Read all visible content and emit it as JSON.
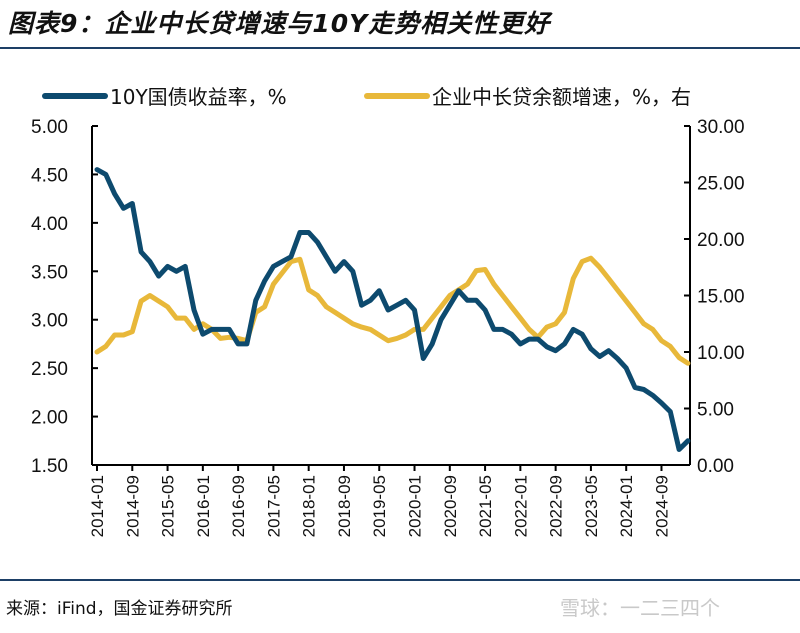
{
  "title": "图表9：企业中长贷增速与10Y走势相关性更好",
  "source": "来源：iFind，国金证券研究所",
  "watermark": "雪球：一二三四个",
  "chart_data": {
    "type": "line",
    "title": "图表9：企业中长贷增速与10Y走势相关性更好",
    "legend_position": "top",
    "grid": false,
    "x_tick_labels": [
      "2014-01",
      "2014-09",
      "2015-05",
      "2016-01",
      "2016-09",
      "2017-05",
      "2018-01",
      "2018-09",
      "2019-05",
      "2020-01",
      "2020-09",
      "2021-05",
      "2022-01",
      "2022-09",
      "2023-05",
      "2024-01",
      "2024-09"
    ],
    "y_left": {
      "ylim": [
        1.5,
        5.0
      ],
      "ticks": [
        "1.50",
        "2.00",
        "2.50",
        "3.00",
        "3.50",
        "4.00",
        "4.50",
        "5.00"
      ]
    },
    "y_right": {
      "ylim": [
        0,
        30
      ],
      "ticks": [
        "0.00",
        "5.00",
        "10.00",
        "15.00",
        "20.00",
        "25.00",
        "30.00"
      ]
    },
    "x": [
      "2014-01",
      "2014-03",
      "2014-05",
      "2014-07",
      "2014-09",
      "2014-11",
      "2015-01",
      "2015-03",
      "2015-05",
      "2015-07",
      "2015-09",
      "2015-11",
      "2016-01",
      "2016-03",
      "2016-05",
      "2016-07",
      "2016-09",
      "2016-11",
      "2017-01",
      "2017-03",
      "2017-05",
      "2017-07",
      "2017-09",
      "2017-11",
      "2018-01",
      "2018-03",
      "2018-05",
      "2018-07",
      "2018-09",
      "2018-11",
      "2019-01",
      "2019-03",
      "2019-05",
      "2019-07",
      "2019-09",
      "2019-11",
      "2020-01",
      "2020-03",
      "2020-05",
      "2020-07",
      "2020-09",
      "2020-11",
      "2021-01",
      "2021-03",
      "2021-05",
      "2021-07",
      "2021-09",
      "2021-11",
      "2022-01",
      "2022-03",
      "2022-05",
      "2022-07",
      "2022-09",
      "2022-11",
      "2023-01",
      "2023-03",
      "2023-05",
      "2023-07",
      "2023-09",
      "2023-11",
      "2024-01",
      "2024-03",
      "2024-05",
      "2024-07",
      "2024-09",
      "2024-11",
      "2025-01",
      "2025-03"
    ],
    "series": [
      {
        "name": "10Y国债收益率，%",
        "axis": "left",
        "color": "#0d4a6e",
        "values": [
          4.55,
          4.5,
          4.3,
          4.15,
          4.2,
          3.7,
          3.6,
          3.45,
          3.55,
          3.5,
          3.55,
          3.1,
          2.85,
          2.9,
          2.9,
          2.9,
          2.75,
          2.75,
          3.2,
          3.4,
          3.55,
          3.6,
          3.65,
          3.9,
          3.9,
          3.8,
          3.65,
          3.5,
          3.6,
          3.5,
          3.15,
          3.2,
          3.3,
          3.1,
          3.15,
          3.2,
          3.1,
          2.6,
          2.75,
          3.0,
          3.15,
          3.3,
          3.2,
          3.2,
          3.1,
          2.9,
          2.9,
          2.85,
          2.75,
          2.8,
          2.8,
          2.72,
          2.68,
          2.75,
          2.9,
          2.85,
          2.7,
          2.62,
          2.68,
          2.6,
          2.5,
          2.3,
          2.28,
          2.22,
          2.14,
          2.05,
          1.66,
          1.75
        ]
      },
      {
        "name": "企业中长贷余额增速，%，右",
        "axis": "right",
        "color": "#e8b83a",
        "values": [
          10.0,
          10.5,
          11.5,
          11.5,
          11.8,
          14.5,
          15.0,
          14.5,
          14.0,
          13.0,
          13.0,
          12.0,
          12.5,
          12.0,
          11.2,
          11.3,
          11.2,
          11.0,
          13.5,
          14.0,
          16.0,
          17.0,
          18.0,
          18.2,
          15.5,
          15.0,
          14.0,
          13.5,
          13.0,
          12.5,
          12.2,
          12.0,
          11.5,
          11.0,
          11.2,
          11.5,
          12.0,
          12.0,
          13.0,
          14.0,
          15.0,
          15.5,
          16.0,
          17.2,
          17.3,
          16.0,
          15.0,
          14.0,
          13.0,
          12.0,
          11.3,
          12.2,
          12.5,
          13.5,
          16.5,
          18.0,
          18.3,
          17.5,
          16.5,
          15.5,
          14.5,
          13.5,
          12.5,
          12.0,
          11.0,
          10.5,
          9.5,
          9.0
        ]
      }
    ]
  }
}
